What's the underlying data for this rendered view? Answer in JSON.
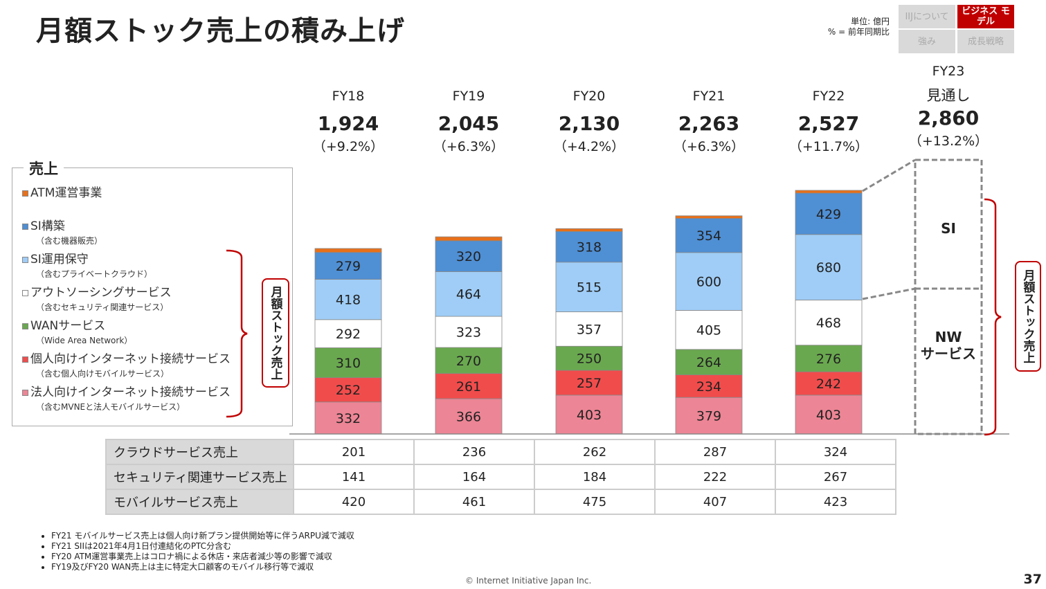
{
  "title": "月額ストック売上の積み上げ",
  "unit": {
    "line1": "単位: 億円",
    "line2": "% = 前年同期比"
  },
  "nav": [
    {
      "label": "IIJについて",
      "active": false
    },
    {
      "label": "ビジネス モデル",
      "active": true
    },
    {
      "label": "強み",
      "active": false
    },
    {
      "label": "成長戦略",
      "active": false
    }
  ],
  "chart_data": {
    "type": "bar",
    "stacked": true,
    "categories": [
      "FY18",
      "FY19",
      "FY20",
      "FY21",
      "FY22"
    ],
    "totals": [
      "1,924",
      "2,045",
      "2,130",
      "2,263",
      "2,527"
    ],
    "growth": [
      "（+9.2%）",
      "（+6.3%）",
      "（+4.2%）",
      "（+6.3%）",
      "（+11.7%）"
    ],
    "series": [
      {
        "name": "法人向けインターネット接続サービス",
        "color": "#ec8595",
        "values": [
          332,
          366,
          403,
          379,
          403
        ]
      },
      {
        "name": "個人向けインターネット接続サービス",
        "color": "#f14c4c",
        "values": [
          252,
          261,
          257,
          234,
          242
        ]
      },
      {
        "name": "WANサービス",
        "color": "#6aa84f",
        "values": [
          310,
          270,
          250,
          264,
          276
        ]
      },
      {
        "name": "アウトソーシングサービス",
        "color": "#ffffff",
        "values": [
          292,
          323,
          357,
          405,
          468
        ]
      },
      {
        "name": "SI運用保守",
        "color": "#9fcdf7",
        "values": [
          418,
          464,
          515,
          600,
          680
        ]
      },
      {
        "name": "SI構築",
        "color": "#4f8fd4",
        "values": [
          279,
          320,
          318,
          354,
          429
        ]
      },
      {
        "name": "ATM運営事業",
        "color": "#e8701a",
        "values": [
          41,
          41,
          30,
          27,
          29
        ],
        "labeled": false
      }
    ],
    "forecast": {
      "fy": "FY23",
      "label": "見通し",
      "total": "2,860",
      "growth": "（+13.2%）",
      "segments": [
        "SI",
        "NW\nサービス"
      ]
    }
  },
  "legend": {
    "title": "売上",
    "items": [
      {
        "label": "ATM運営事業",
        "sub": "",
        "color": "#e8701a"
      },
      {
        "label": "SI構築",
        "sub": "（含む機器販売）",
        "color": "#4f8fd4"
      },
      {
        "label": "SI運用保守",
        "sub": "（含むプライベートクラウド）",
        "color": "#9fcdf7"
      },
      {
        "label": "アウトソーシングサービス",
        "sub": "（含むセキュリティ関連サービス）",
        "color": "#ffffff"
      },
      {
        "label": "WANサービス",
        "sub": "（Wide Area Network）",
        "color": "#6aa84f"
      },
      {
        "label": "個人向けインターネット接続サービス",
        "sub": "（含む個人向けモバイルサービス）",
        "color": "#f14c4c"
      },
      {
        "label": "法人向けインターネット接続サービス",
        "sub": "（含むMVNEと法人モバイルサービス）",
        "color": "#ec8595"
      }
    ]
  },
  "stock_label": "月額ストック売上",
  "table": [
    {
      "label": "クラウドサービス売上",
      "values": [
        "201",
        "236",
        "262",
        "287",
        "324"
      ]
    },
    {
      "label": "セキュリティ関連サービス売上",
      "values": [
        "141",
        "164",
        "184",
        "222",
        "267"
      ]
    },
    {
      "label": "モバイルサービス売上",
      "values": [
        "420",
        "461",
        "475",
        "407",
        "423"
      ]
    }
  ],
  "notes": [
    "FY21 モバイルサービス売上は個人向け新プラン提供開始等に伴うARPU減で減収",
    "FY21 SIIは2021年4月1日付連結化のPTC分含む",
    "FY20 ATM運営事業売上はコロナ禍による休店・来店者減少等の影響で減収",
    "FY19及びFY20 WAN売上は主に特定大口顧客のモバイル移行等で減収"
  ],
  "copyright": "© Internet Initiative Japan Inc.",
  "page": "37"
}
